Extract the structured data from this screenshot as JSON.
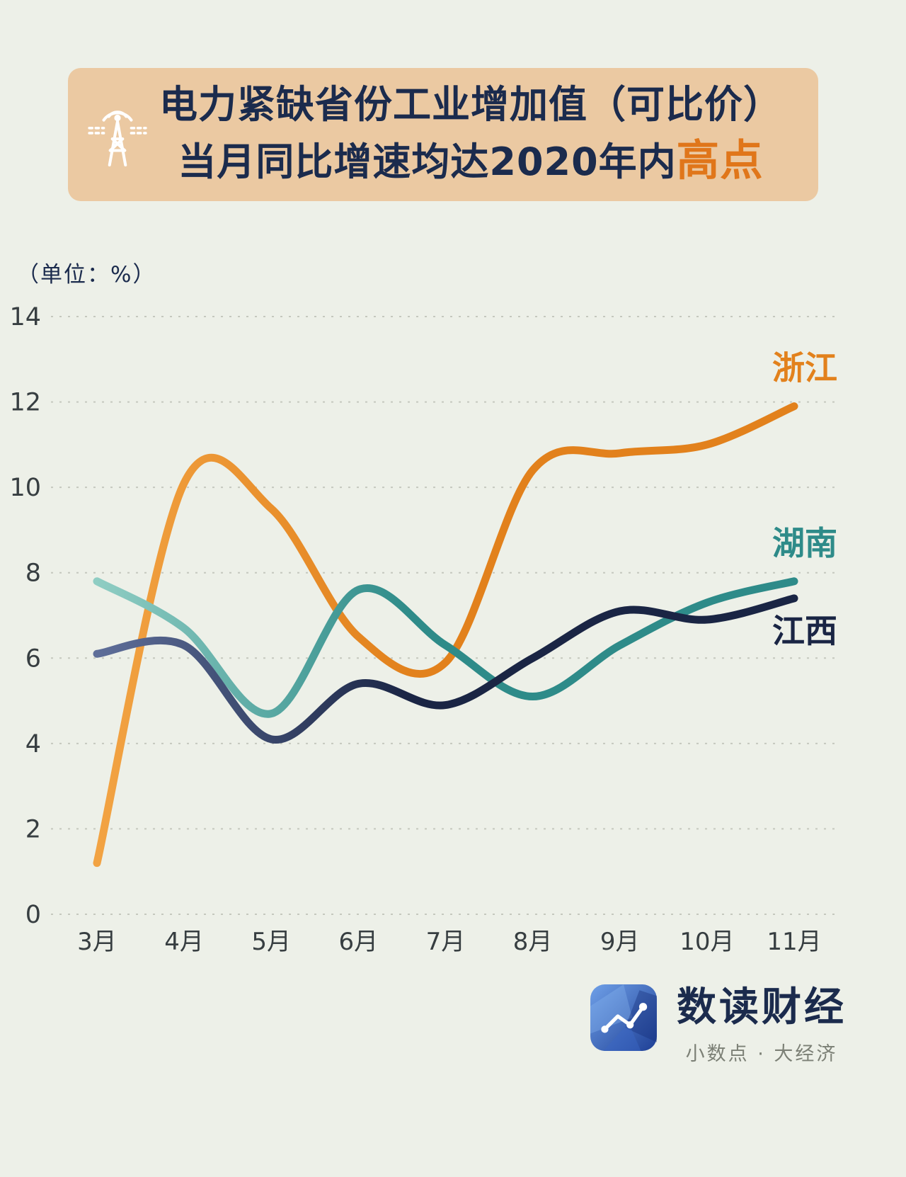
{
  "title": {
    "line1": "电力紧缺省份工业增加值（可比价）",
    "line2_prefix": "当月同比增速均达2020年内",
    "line2_highlight": "高点"
  },
  "unit_label": "（单位：%）",
  "colors": {
    "bg": "#EDF0E8",
    "banner_bg": "#EBC9A2",
    "title": "#1B2B4D",
    "highlight": "#E0761A",
    "grid": "#C5C8BE",
    "axis_text": "#373E41",
    "brand_blue": "#2E5BB7"
  },
  "chart_data": {
    "type": "line",
    "categories": [
      "3月",
      "4月",
      "5月",
      "6月",
      "7月",
      "8月",
      "9月",
      "10月",
      "11月"
    ],
    "series": [
      {
        "name": "浙江",
        "color": "#E2811C",
        "color_light": "#F2A343",
        "values": [
          1.2,
          10.1,
          9.5,
          6.5,
          5.9,
          10.4,
          10.8,
          11.0,
          11.9
        ]
      },
      {
        "name": "湖南",
        "color": "#2E8B89",
        "color_light": "#8FCDC3",
        "values": [
          7.8,
          6.7,
          4.7,
          7.6,
          6.3,
          5.1,
          6.3,
          7.3,
          7.8
        ]
      },
      {
        "name": "江西",
        "color": "#1A2544",
        "color_light": "#5E6E99",
        "values": [
          6.1,
          6.3,
          4.1,
          5.4,
          4.9,
          6.0,
          7.1,
          6.9,
          7.4
        ]
      }
    ],
    "ylim": [
      0,
      14
    ],
    "yticks": [
      0,
      2,
      4,
      6,
      8,
      10,
      12,
      14
    ],
    "grid": "dashed-horizontal",
    "legend_position": "line-end-right"
  },
  "footer": {
    "brand": "数读财经",
    "tagline": "小数点 · 大经济"
  }
}
